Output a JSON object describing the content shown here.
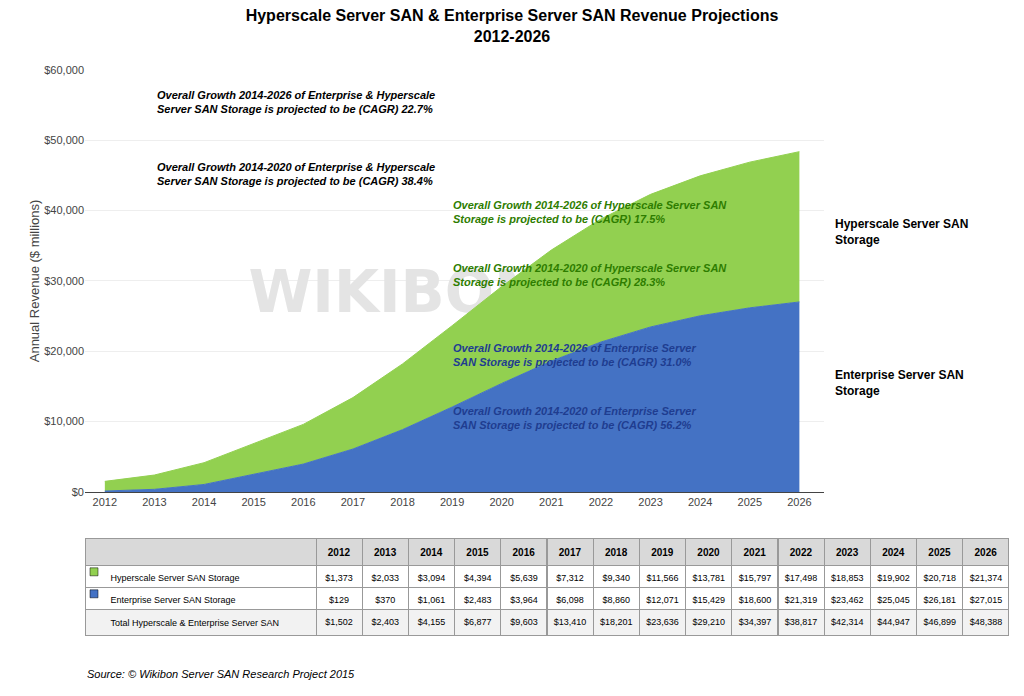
{
  "chart_data": [
    {
      "type": "area",
      "title": "Hyperscale Server SAN & Enterprise Server SAN Revenue Projections",
      "subtitle": "2012-2026",
      "ylabel": "Annual Revenue ($ millions)",
      "x": [
        2012,
        2013,
        2014,
        2015,
        2016,
        2017,
        2018,
        2019,
        2020,
        2021,
        2022,
        2023,
        2024,
        2025,
        2026
      ],
      "xlim": [
        2011.6,
        2026.5
      ],
      "xticks": [
        2012,
        2013,
        2014,
        2015,
        2016,
        2017,
        2018,
        2019,
        2020,
        2021,
        2022,
        2023,
        2024,
        2025,
        2026
      ],
      "ylim": [
        0,
        60000
      ],
      "yticks": [
        {
          "value": 0,
          "label": "$0"
        },
        {
          "value": 10000,
          "label": "$10,000"
        },
        {
          "value": 20000,
          "label": "$20,000"
        },
        {
          "value": 30000,
          "label": "$30,000"
        },
        {
          "value": 40000,
          "label": "$40,000"
        },
        {
          "value": 50000,
          "label": "$50,000"
        },
        {
          "value": 60000,
          "label": "$60,000"
        }
      ],
      "grid": "y",
      "stacked": true,
      "series": [
        {
          "name": "Enterprise Server SAN\nStorage",
          "color": "#4472c4",
          "values": [
            129,
            370,
            1061,
            2483,
            3964,
            6098,
            8860,
            12071,
            15429,
            18600,
            21319,
            23462,
            25045,
            26181,
            27015
          ]
        },
        {
          "name": "Hyperscale Server SAN\nStorage",
          "color": "#92d050",
          "values": [
            1373,
            2033,
            3094,
            4394,
            5639,
            7312,
            9340,
            11566,
            13781,
            15797,
            17498,
            18853,
            19902,
            20718,
            21374
          ]
        }
      ],
      "annotations": [
        {
          "text": "Overall Growth 2014-2026 of Enterprise & Hyperscale\nServer SAN Storage is projected to be (CAGR) 22.7%",
          "color": "#000000"
        },
        {
          "text": "Overall Growth 2014-2020 of Enterprise & Hyperscale\nServer SAN Storage is projected to be (CAGR) 38.4%",
          "color": "#000000"
        },
        {
          "text": "Overall Growth 2014-2026 of Hyperscale Server SAN\nStorage is projected to be (CAGR) 17.5%",
          "color": "#2e7d00"
        },
        {
          "text": "Overall Growth 2014-2020 of Hyperscale Server SAN\nStorage is projected to be (CAGR) 28.3%",
          "color": "#2e7d00"
        },
        {
          "text": "Overall Growth 2014-2026 of Enterprise Server\nSAN Storage is projected to be (CAGR) 31.0%",
          "color": "#1f3d90"
        },
        {
          "text": "Overall Growth 2014-2020 of Enterprise Server\nSAN Storage is projected to be (CAGR) 56.2%",
          "color": "#1f3d90"
        }
      ],
      "watermark": {
        "text": "WIKIBON",
        "color": "#e4e4e4"
      },
      "source": "Source: © Wikibon Server SAN Research Project 2015"
    },
    {
      "type": "table",
      "categories": [
        2012,
        2013,
        2014,
        2015,
        2016,
        2017,
        2018,
        2019,
        2020,
        2021,
        2022,
        2023,
        2024,
        2025,
        2026
      ],
      "series": [
        {
          "name": "Hyperscale Server SAN Storage",
          "color": "#92d050",
          "values": [
            1373,
            2033,
            3094,
            4394,
            5639,
            7312,
            9340,
            11566,
            13781,
            15797,
            17498,
            18853,
            19902,
            20718,
            21374
          ],
          "value_labels": [
            "$1,373",
            "$2,033",
            "$3,094",
            "$4,394",
            "$5,639",
            "$7,312",
            "$9,340",
            "$11,566",
            "$13,781",
            "$15,797",
            "$17,498",
            "$18,853",
            "$19,902",
            "$20,718",
            "$21,374"
          ]
        },
        {
          "name": "Enterprise Server SAN Storage",
          "color": "#4472c4",
          "values": [
            129,
            370,
            1061,
            2483,
            3964,
            6098,
            8860,
            12071,
            15429,
            18600,
            21319,
            23462,
            25045,
            26181,
            27015
          ],
          "value_labels": [
            "$129",
            "$370",
            "$1,061",
            "$2,483",
            "$3,964",
            "$6,098",
            "$8,860",
            "$12,071",
            "$15,429",
            "$18,600",
            "$21,319",
            "$23,462",
            "$25,045",
            "$26,181",
            "$27,015"
          ]
        },
        {
          "name": "Total Hyperscale & Enterprise Server SAN",
          "values": [
            1502,
            2403,
            4155,
            6877,
            9603,
            13410,
            18201,
            23636,
            29210,
            34397,
            38817,
            42314,
            44947,
            46899,
            48388
          ],
          "value_labels": [
            "$1,502",
            "$2,403",
            "$4,155",
            "$6,877",
            "$9,603",
            "$13,410",
            "$18,201",
            "$23,636",
            "$29,210",
            "$34,397",
            "$38,817",
            "$42,314",
            "$44,947",
            "$46,899",
            "$48,388"
          ]
        }
      ]
    }
  ]
}
